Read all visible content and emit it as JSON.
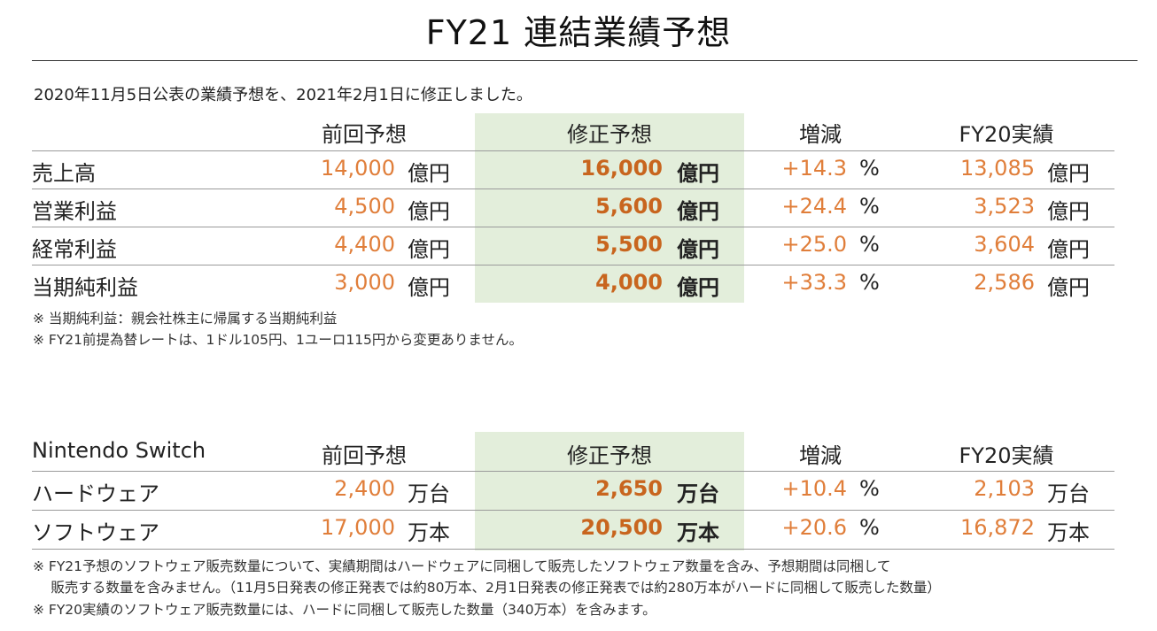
{
  "title": "FY21 連結業績予想",
  "intro": "2020年11月5日公表の業績予想を、2021年2月1日に修正しました。",
  "financial": {
    "headers": {
      "label": "",
      "prev": "前回予想",
      "revised": "修正予想",
      "change": "増減",
      "actual": "FY20実績"
    },
    "rows": [
      {
        "label": "売上高",
        "prev": "14,000",
        "prev_unit": "億円",
        "revised": "16,000",
        "revised_unit": "億円",
        "change": "+14.3",
        "change_unit": "%",
        "actual": "13,085",
        "actual_unit": "億円"
      },
      {
        "label": "営業利益",
        "prev": "4,500",
        "prev_unit": "億円",
        "revised": "5,600",
        "revised_unit": "億円",
        "change": "+24.4",
        "change_unit": "%",
        "actual": "3,523",
        "actual_unit": "億円"
      },
      {
        "label": "経常利益",
        "prev": "4,400",
        "prev_unit": "億円",
        "revised": "5,500",
        "revised_unit": "億円",
        "change": "+25.0",
        "change_unit": "%",
        "actual": "3,604",
        "actual_unit": "億円"
      },
      {
        "label": "当期純利益",
        "prev": "3,000",
        "prev_unit": "億円",
        "revised": "4,000",
        "revised_unit": "億円",
        "change": "+33.3",
        "change_unit": "%",
        "actual": "2,586",
        "actual_unit": "億円"
      }
    ],
    "notes": [
      "※ 当期純利益：親会社株主に帰属する当期純利益",
      "※ FY21前提為替レートは、1ドル105円、1ユーロ115円から変更ありません。"
    ]
  },
  "switch": {
    "headers": {
      "label": "Nintendo Switch",
      "prev": "前回予想",
      "revised": "修正予想",
      "change": "増減",
      "actual": "FY20実績"
    },
    "rows": [
      {
        "label": "ハードウェア",
        "prev": "2,400",
        "prev_unit": "万台",
        "revised": "2,650",
        "revised_unit": "万台",
        "change": "+10.4",
        "change_unit": "%",
        "actual": "2,103",
        "actual_unit": "万台"
      },
      {
        "label": "ソフトウェア",
        "prev": "17,000",
        "prev_unit": "万本",
        "revised": "20,500",
        "revised_unit": "万本",
        "change": "+20.6",
        "change_unit": "%",
        "actual": "16,872",
        "actual_unit": "万本"
      }
    ],
    "notes": [
      "※ FY21予想のソフトウェア販売数量について、実績期間はハードウェアに同梱して販売したソフトウェア数量を含み、予想期間は同梱して",
      "　 販売する数量を含みません。（11月5日発表の修正発表では約80万本、2月1日発表の修正発表では約280万本がハードに同梱して販売した数量）",
      "※ FY20実績のソフトウェア販売数量には、ハードに同梱して販売した数量（340万本）を含みます。"
    ]
  },
  "colors": {
    "accent_number": "#e07e3a",
    "revised_number": "#c8651e",
    "highlight": "#e3eedb"
  }
}
